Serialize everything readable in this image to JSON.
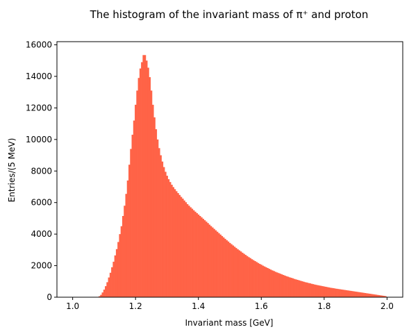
{
  "chart_data": {
    "type": "bar",
    "title": "The histogram of the invariant mass of π⁺ and proton",
    "xlabel": "Invariant mass [GeV]",
    "ylabel": "Entries/(5 MeV)",
    "xlim": [
      0.95,
      2.05
    ],
    "ylim": [
      0,
      16200
    ],
    "bin_width": 0.005,
    "color": "#ff6347",
    "x_ticks": [
      {
        "value": 1.0,
        "label": "1.0"
      },
      {
        "value": 1.2,
        "label": "1.2"
      },
      {
        "value": 1.4,
        "label": "1.4"
      },
      {
        "value": 1.6,
        "label": "1.6"
      },
      {
        "value": 1.8,
        "label": "1.8"
      },
      {
        "value": 2.0,
        "label": "2.0"
      }
    ],
    "y_ticks": [
      {
        "value": 0,
        "label": "0"
      },
      {
        "value": 2000,
        "label": "2000"
      },
      {
        "value": 4000,
        "label": "4000"
      },
      {
        "value": 6000,
        "label": "6000"
      },
      {
        "value": 8000,
        "label": "8000"
      },
      {
        "value": 10000,
        "label": "10000"
      },
      {
        "value": 12000,
        "label": "12000"
      },
      {
        "value": 14000,
        "label": "14000"
      },
      {
        "value": 16000,
        "label": "16000"
      }
    ],
    "points": [
      [
        1.075,
        0
      ],
      [
        1.08,
        20
      ],
      [
        1.085,
        60
      ],
      [
        1.09,
        150
      ],
      [
        1.095,
        300
      ],
      [
        1.1,
        480
      ],
      [
        1.105,
        700
      ],
      [
        1.11,
        950
      ],
      [
        1.115,
        1250
      ],
      [
        1.12,
        1550
      ],
      [
        1.125,
        1900
      ],
      [
        1.13,
        2250
      ],
      [
        1.135,
        2650
      ],
      [
        1.14,
        3050
      ],
      [
        1.145,
        3500
      ],
      [
        1.15,
        4000
      ],
      [
        1.155,
        4500
      ],
      [
        1.16,
        5150
      ],
      [
        1.165,
        5800
      ],
      [
        1.17,
        6550
      ],
      [
        1.175,
        7400
      ],
      [
        1.18,
        8400
      ],
      [
        1.185,
        9400
      ],
      [
        1.19,
        10300
      ],
      [
        1.195,
        11200
      ],
      [
        1.2,
        12200
      ],
      [
        1.205,
        13100
      ],
      [
        1.21,
        13900
      ],
      [
        1.215,
        14500
      ],
      [
        1.22,
        14900
      ],
      [
        1.225,
        15350
      ],
      [
        1.23,
        15350
      ],
      [
        1.235,
        15000
      ],
      [
        1.24,
        14550
      ],
      [
        1.245,
        13950
      ],
      [
        1.25,
        13100
      ],
      [
        1.255,
        12200
      ],
      [
        1.26,
        11400
      ],
      [
        1.265,
        10650
      ],
      [
        1.27,
        10000
      ],
      [
        1.275,
        9450
      ],
      [
        1.28,
        9000
      ],
      [
        1.285,
        8600
      ],
      [
        1.29,
        8250
      ],
      [
        1.295,
        7950
      ],
      [
        1.3,
        7700
      ],
      [
        1.305,
        7480
      ],
      [
        1.31,
        7300
      ],
      [
        1.315,
        7130
      ],
      [
        1.32,
        6980
      ],
      [
        1.325,
        6850
      ],
      [
        1.33,
        6720
      ],
      [
        1.335,
        6600
      ],
      [
        1.34,
        6480
      ],
      [
        1.345,
        6360
      ],
      [
        1.35,
        6250
      ],
      [
        1.355,
        6130
      ],
      [
        1.36,
        6020
      ],
      [
        1.365,
        5900
      ],
      [
        1.37,
        5800
      ],
      [
        1.375,
        5700
      ],
      [
        1.38,
        5610
      ],
      [
        1.385,
        5510
      ],
      [
        1.39,
        5420
      ],
      [
        1.395,
        5330
      ],
      [
        1.4,
        5240
      ],
      [
        1.405,
        5150
      ],
      [
        1.41,
        5060
      ],
      [
        1.415,
        4970
      ],
      [
        1.42,
        4880
      ],
      [
        1.425,
        4790
      ],
      [
        1.43,
        4700
      ],
      [
        1.435,
        4600
      ],
      [
        1.44,
        4510
      ],
      [
        1.445,
        4420
      ],
      [
        1.45,
        4330
      ],
      [
        1.455,
        4240
      ],
      [
        1.46,
        4150
      ],
      [
        1.465,
        4060
      ],
      [
        1.47,
        3970
      ],
      [
        1.475,
        3880
      ],
      [
        1.48,
        3790
      ],
      [
        1.485,
        3700
      ],
      [
        1.49,
        3610
      ],
      [
        1.495,
        3530
      ],
      [
        1.5,
        3440
      ],
      [
        1.505,
        3360
      ],
      [
        1.51,
        3280
      ],
      [
        1.515,
        3200
      ],
      [
        1.52,
        3120
      ],
      [
        1.525,
        3040
      ],
      [
        1.53,
        2970
      ],
      [
        1.535,
        2900
      ],
      [
        1.54,
        2820
      ],
      [
        1.545,
        2750
      ],
      [
        1.55,
        2680
      ],
      [
        1.555,
        2610
      ],
      [
        1.56,
        2540
      ],
      [
        1.565,
        2480
      ],
      [
        1.57,
        2410
      ],
      [
        1.575,
        2350
      ],
      [
        1.58,
        2290
      ],
      [
        1.585,
        2230
      ],
      [
        1.59,
        2170
      ],
      [
        1.595,
        2110
      ],
      [
        1.6,
        2060
      ],
      [
        1.605,
        2000
      ],
      [
        1.61,
        1950
      ],
      [
        1.615,
        1900
      ],
      [
        1.62,
        1850
      ],
      [
        1.625,
        1800
      ],
      [
        1.63,
        1750
      ],
      [
        1.635,
        1700
      ],
      [
        1.64,
        1660
      ],
      [
        1.645,
        1610
      ],
      [
        1.65,
        1570
      ],
      [
        1.655,
        1530
      ],
      [
        1.66,
        1490
      ],
      [
        1.665,
        1450
      ],
      [
        1.67,
        1410
      ],
      [
        1.675,
        1370
      ],
      [
        1.68,
        1330
      ],
      [
        1.685,
        1300
      ],
      [
        1.69,
        1260
      ],
      [
        1.695,
        1230
      ],
      [
        1.7,
        1200
      ],
      [
        1.705,
        1160
      ],
      [
        1.71,
        1130
      ],
      [
        1.715,
        1100
      ],
      [
        1.72,
        1070
      ],
      [
        1.725,
        1040
      ],
      [
        1.73,
        1010
      ],
      [
        1.735,
        980
      ],
      [
        1.74,
        950
      ],
      [
        1.745,
        930
      ],
      [
        1.75,
        900
      ],
      [
        1.755,
        880
      ],
      [
        1.76,
        850
      ],
      [
        1.765,
        830
      ],
      [
        1.77,
        800
      ],
      [
        1.775,
        780
      ],
      [
        1.78,
        760
      ],
      [
        1.785,
        740
      ],
      [
        1.79,
        720
      ],
      [
        1.795,
        700
      ],
      [
        1.8,
        680
      ],
      [
        1.805,
        660
      ],
      [
        1.81,
        640
      ],
      [
        1.815,
        620
      ],
      [
        1.82,
        600
      ],
      [
        1.825,
        585
      ],
      [
        1.83,
        570
      ],
      [
        1.835,
        550
      ],
      [
        1.84,
        535
      ],
      [
        1.845,
        520
      ],
      [
        1.85,
        505
      ],
      [
        1.855,
        490
      ],
      [
        1.86,
        475
      ],
      [
        1.865,
        460
      ],
      [
        1.87,
        445
      ],
      [
        1.875,
        430
      ],
      [
        1.88,
        415
      ],
      [
        1.885,
        400
      ],
      [
        1.89,
        385
      ],
      [
        1.895,
        370
      ],
      [
        1.9,
        355
      ],
      [
        1.905,
        340
      ],
      [
        1.91,
        325
      ],
      [
        1.915,
        310
      ],
      [
        1.92,
        295
      ],
      [
        1.925,
        280
      ],
      [
        1.93,
        265
      ],
      [
        1.935,
        250
      ],
      [
        1.94,
        235
      ],
      [
        1.945,
        220
      ],
      [
        1.95,
        205
      ],
      [
        1.955,
        190
      ],
      [
        1.96,
        175
      ],
      [
        1.965,
        160
      ],
      [
        1.97,
        145
      ],
      [
        1.975,
        130
      ],
      [
        1.98,
        115
      ],
      [
        1.985,
        100
      ],
      [
        1.99,
        85
      ],
      [
        1.995,
        70
      ],
      [
        2.0,
        0
      ]
    ]
  }
}
